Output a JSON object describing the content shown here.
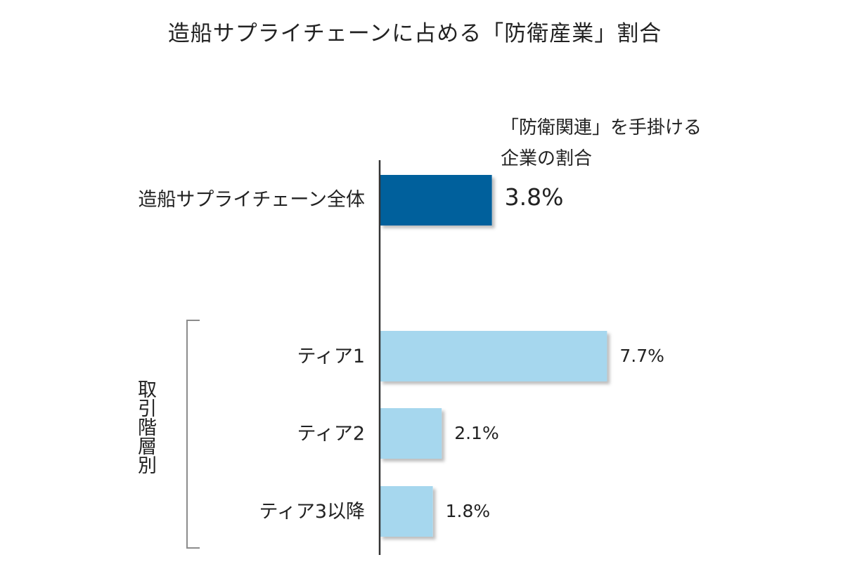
{
  "chart_data": {
    "type": "bar",
    "orientation": "horizontal",
    "title": "造船サプライチェーンに占める「防衛産業」割合",
    "value_note_lines": [
      "「防衛関連」を手掛ける",
      "企業の割合"
    ],
    "categories": [
      "造船サプライチェーン全体",
      "ティア1",
      "ティア2",
      "ティア3以降"
    ],
    "values": [
      3.8,
      7.7,
      2.1,
      1.8
    ],
    "value_labels": [
      "3.8%",
      "7.7%",
      "2.1%",
      "1.8%"
    ],
    "group_label": "取引階層別",
    "colors": [
      "#00609c",
      "#a6d7ee",
      "#a6d7ee",
      "#a6d7ee"
    ],
    "xlim": [
      0,
      10
    ],
    "grid": false,
    "legend": "none"
  }
}
